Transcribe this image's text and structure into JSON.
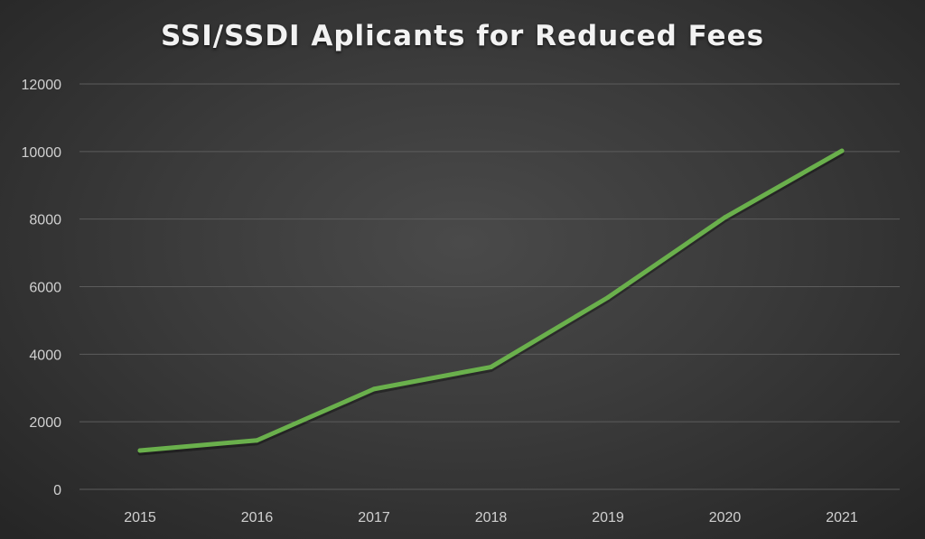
{
  "chart_data": {
    "type": "line",
    "title": "SSI/SSDI Aplicants for Reduced Fees",
    "xlabel": "",
    "ylabel": "",
    "categories": [
      "2015",
      "2016",
      "2017",
      "2018",
      "2019",
      "2020",
      "2021"
    ],
    "series": [
      {
        "values": [
          1150,
          1450,
          2970,
          3620,
          5680,
          8050,
          10020
        ],
        "color": "#6ab04c"
      }
    ],
    "ylim": [
      0,
      12000
    ],
    "yticks": [
      0,
      2000,
      4000,
      6000,
      8000,
      10000,
      12000
    ],
    "grid": true,
    "legend": "none"
  }
}
